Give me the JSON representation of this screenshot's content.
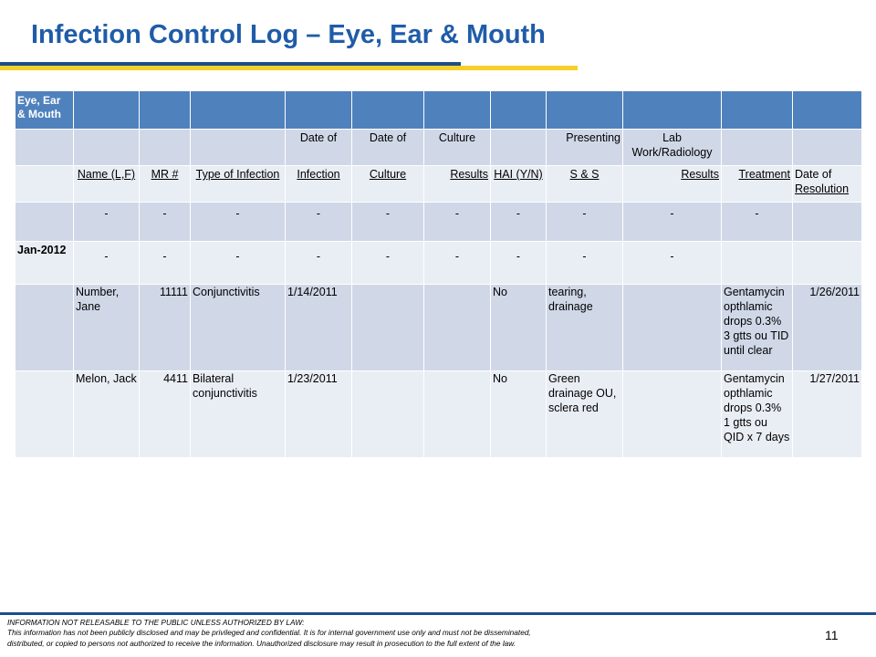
{
  "slide": {
    "title": "Infection Control Log – Eye, Ear & Mouth",
    "page_number": "11"
  },
  "table": {
    "corner_label": "Eye, Ear & Mouth",
    "sub_headers": {
      "infection": "Date of",
      "culture": "Date of",
      "results": "Culture",
      "ss": "Presenting",
      "lab": "Lab Work/Radiology"
    },
    "column_labels": {
      "name": "Name (L,F)",
      "mr": "MR #",
      "type": "Type of Infection",
      "infection": "Infection",
      "culture": "Culture",
      "results": "Results",
      "hai": "HAI (Y/N)",
      "ss": "S & S",
      "lab": "Results",
      "treatment": "Treatment",
      "resolution_prefix": "Date of",
      "resolution": "Resolution"
    },
    "dash": "-",
    "month_label": "Jan-2012",
    "rows": [
      {
        "name": "Number, Jane",
        "mr": "11111",
        "type": "Conjunctivitis",
        "infection_date": "1/14/2011",
        "culture_date": "",
        "culture_results": "",
        "hai": "No",
        "ss": "tearing, drainage",
        "lab": "",
        "treatment": "Gentamycin opthlamic drops 0.3% 3 gtts ou TID until clear",
        "resolution": "1/26/2011"
      },
      {
        "name": "Melon, Jack",
        "mr": "4411",
        "type": "Bilateral conjunctivitis",
        "infection_date": "1/23/2011",
        "culture_date": "",
        "culture_results": "",
        "hai": "No",
        "ss": "Green drainage OU, sclera red",
        "lab": "",
        "treatment": "Gentamycin opthlamic drops 0.3% 1 gtts ou QID x 7 days",
        "resolution": "1/27/2011"
      }
    ]
  },
  "footer": {
    "line1": "INFORMATION NOT RELEASABLE TO THE PUBLIC UNLESS AUTHORIZED BY LAW:",
    "line2": "This information has not been publicly disclosed and may be privileged and confidential.  It is for internal government use only and must not be disseminated,",
    "line3": "distributed, or copied to persons not authorized to receive the information.  Unauthorized disclosure may result in prosecution to the full extent of the law."
  }
}
